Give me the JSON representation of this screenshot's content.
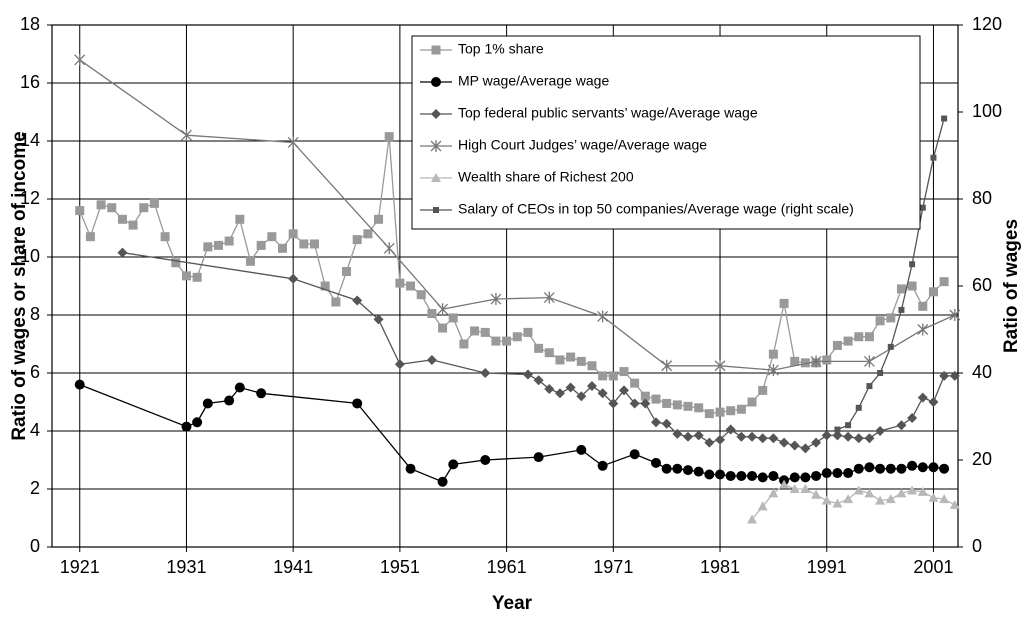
{
  "chart_data": {
    "type": "line",
    "x_label": "Year",
    "y_label": "Ratio of wages or share of income",
    "y2_label": "Ratio of wages",
    "xlim": [
      1918.4,
      2003.3
    ],
    "xticks": [
      1921,
      1931,
      1941,
      1951,
      1961,
      1971,
      1981,
      1991,
      2001
    ],
    "ylim": [
      0,
      18
    ],
    "yticks": [
      0,
      2,
      4,
      6,
      8,
      10,
      12,
      14,
      16,
      18
    ],
    "y2lim": [
      0,
      120
    ],
    "y2ticks": [
      0,
      20,
      40,
      60,
      80,
      100,
      120
    ],
    "grid": true,
    "legend": "top-right",
    "series": [
      {
        "name": "Top 1% share",
        "color": "#999999",
        "marker": "square",
        "x": [
          1921,
          1922,
          1923,
          1924,
          1925,
          1926,
          1927,
          1928,
          1929,
          1930,
          1931,
          1932,
          1933,
          1934,
          1935,
          1936,
          1937,
          1938,
          1939,
          1940,
          1941,
          1942,
          1943,
          1944,
          1945,
          1946,
          1947,
          1948,
          1949,
          1950,
          1951,
          1952,
          1953,
          1954,
          1955,
          1956,
          1957,
          1958,
          1959,
          1960,
          1961,
          1962,
          1963,
          1964,
          1965,
          1966,
          1967,
          1968,
          1969,
          1970,
          1971,
          1972,
          1973,
          1974,
          1975,
          1976,
          1977,
          1978,
          1979,
          1980,
          1981,
          1982,
          1983,
          1984,
          1985,
          1986,
          1987,
          1988,
          1989,
          1990,
          1991,
          1992,
          1993,
          1994,
          1995,
          1996,
          1997,
          1998,
          1999,
          2000,
          2001,
          2002
        ],
        "values": [
          11.6,
          10.7,
          11.8,
          11.7,
          11.3,
          11.1,
          11.7,
          11.85,
          10.7,
          9.8,
          9.35,
          9.3,
          10.35,
          10.4,
          10.55,
          11.3,
          9.85,
          10.4,
          10.7,
          10.3,
          10.8,
          10.45,
          10.45,
          9.0,
          8.45,
          9.5,
          10.6,
          10.8,
          11.3,
          14.15,
          9.1,
          9.0,
          8.7,
          8.05,
          7.55,
          7.9,
          7.0,
          7.45,
          7.4,
          7.1,
          7.1,
          7.25,
          7.4,
          6.85,
          6.7,
          6.45,
          6.55,
          6.4,
          6.25,
          5.9,
          5.9,
          6.05,
          5.65,
          5.2,
          5.1,
          4.95,
          4.9,
          4.85,
          4.8,
          4.6,
          4.65,
          4.7,
          4.75,
          5.0,
          5.4,
          6.65,
          8.4,
          6.4,
          6.35,
          6.35,
          6.45,
          6.95,
          7.1,
          7.25,
          7.25,
          7.8,
          7.9,
          8.9,
          9.0,
          8.3,
          8.8,
          9.15
        ]
      },
      {
        "name": "MP wage/Average wage",
        "color": "#000000",
        "marker": "circle",
        "x": [
          1921,
          1931,
          1932,
          1933,
          1935,
          1936,
          1938,
          1947,
          1952,
          1955,
          1956,
          1959,
          1964,
          1968,
          1970,
          1973,
          1975,
          1976,
          1977,
          1978,
          1979,
          1980,
          1981,
          1982,
          1983,
          1984,
          1985,
          1986,
          1987,
          1988,
          1989,
          1990,
          1991,
          1992,
          1993,
          1994,
          1995,
          1996,
          1997,
          1998,
          1999,
          2000,
          2001,
          2002
        ],
        "values": [
          5.6,
          4.15,
          4.3,
          4.95,
          5.05,
          5.5,
          5.3,
          4.95,
          2.7,
          2.25,
          2.85,
          3.0,
          3.1,
          3.35,
          2.8,
          3.2,
          2.9,
          2.7,
          2.7,
          2.65,
          2.6,
          2.5,
          2.5,
          2.45,
          2.45,
          2.45,
          2.4,
          2.45,
          2.3,
          2.4,
          2.4,
          2.45,
          2.55,
          2.55,
          2.55,
          2.7,
          2.75,
          2.7,
          2.7,
          2.7,
          2.8,
          2.75,
          2.75,
          2.7
        ]
      },
      {
        "name": "Top federal public servants’ wage/Average wage",
        "color": "#555555",
        "marker": "diamond",
        "x": [
          1925,
          1941,
          1947,
          1949,
          1951,
          1954,
          1959,
          1963,
          1964,
          1965,
          1966,
          1967,
          1968,
          1969,
          1970,
          1971,
          1972,
          1973,
          1974,
          1975,
          1976,
          1977,
          1978,
          1979,
          1980,
          1981,
          1982,
          1983,
          1984,
          1985,
          1986,
          1987,
          1988,
          1989,
          1990,
          1991,
          1992,
          1993,
          1994,
          1995,
          1996,
          1998,
          1999,
          2000,
          2001,
          2002,
          2003
        ],
        "values": [
          10.15,
          9.25,
          8.5,
          7.85,
          6.3,
          6.45,
          6.0,
          5.95,
          5.75,
          5.45,
          5.3,
          5.5,
          5.2,
          5.55,
          5.3,
          4.95,
          5.4,
          4.95,
          4.95,
          4.3,
          4.25,
          3.9,
          3.8,
          3.85,
          3.6,
          3.7,
          4.05,
          3.8,
          3.8,
          3.75,
          3.75,
          3.6,
          3.5,
          3.4,
          3.6,
          3.85,
          3.85,
          3.8,
          3.75,
          3.75,
          4.0,
          4.2,
          4.45,
          5.15,
          5.0,
          5.9,
          5.9
        ]
      },
      {
        "name": "High Court Judges’ wage/Average wage",
        "color": "#777777",
        "marker": "star",
        "x": [
          1921,
          1931,
          1941,
          1950,
          1955,
          1960,
          1965,
          1970,
          1976,
          1981,
          1986,
          1990,
          1995,
          2000,
          2003
        ],
        "values": [
          16.8,
          14.2,
          13.95,
          10.3,
          8.2,
          8.55,
          8.6,
          7.95,
          6.25,
          6.25,
          6.1,
          6.4,
          6.4,
          7.5,
          8.0
        ]
      },
      {
        "name": "Wealth share of Richest 200",
        "color": "#b8b8b8",
        "marker": "triangle",
        "x": [
          1984,
          1985,
          1986,
          1987,
          1988,
          1989,
          1990,
          1991,
          1992,
          1993,
          1994,
          1995,
          1996,
          1997,
          1998,
          1999,
          2000,
          2001,
          2002,
          2003
        ],
        "values": [
          0.95,
          1.4,
          1.85,
          2.15,
          2.0,
          2.0,
          1.8,
          1.6,
          1.5,
          1.65,
          1.95,
          1.85,
          1.6,
          1.65,
          1.85,
          1.95,
          1.9,
          1.7,
          1.65,
          1.45
        ]
      },
      {
        "name": "Salary of CEOs in top 50 companies/Average wage (right scale)",
        "color": "#555555",
        "marker": "smallsquare",
        "axis": "y2",
        "x": [
          1992,
          1993,
          1994,
          1995,
          1996,
          1997,
          1998,
          1999,
          2000,
          2001,
          2002
        ],
        "values": [
          27,
          28,
          32,
          37,
          40,
          46,
          54.5,
          65,
          78,
          89.5,
          98.5
        ]
      }
    ]
  }
}
